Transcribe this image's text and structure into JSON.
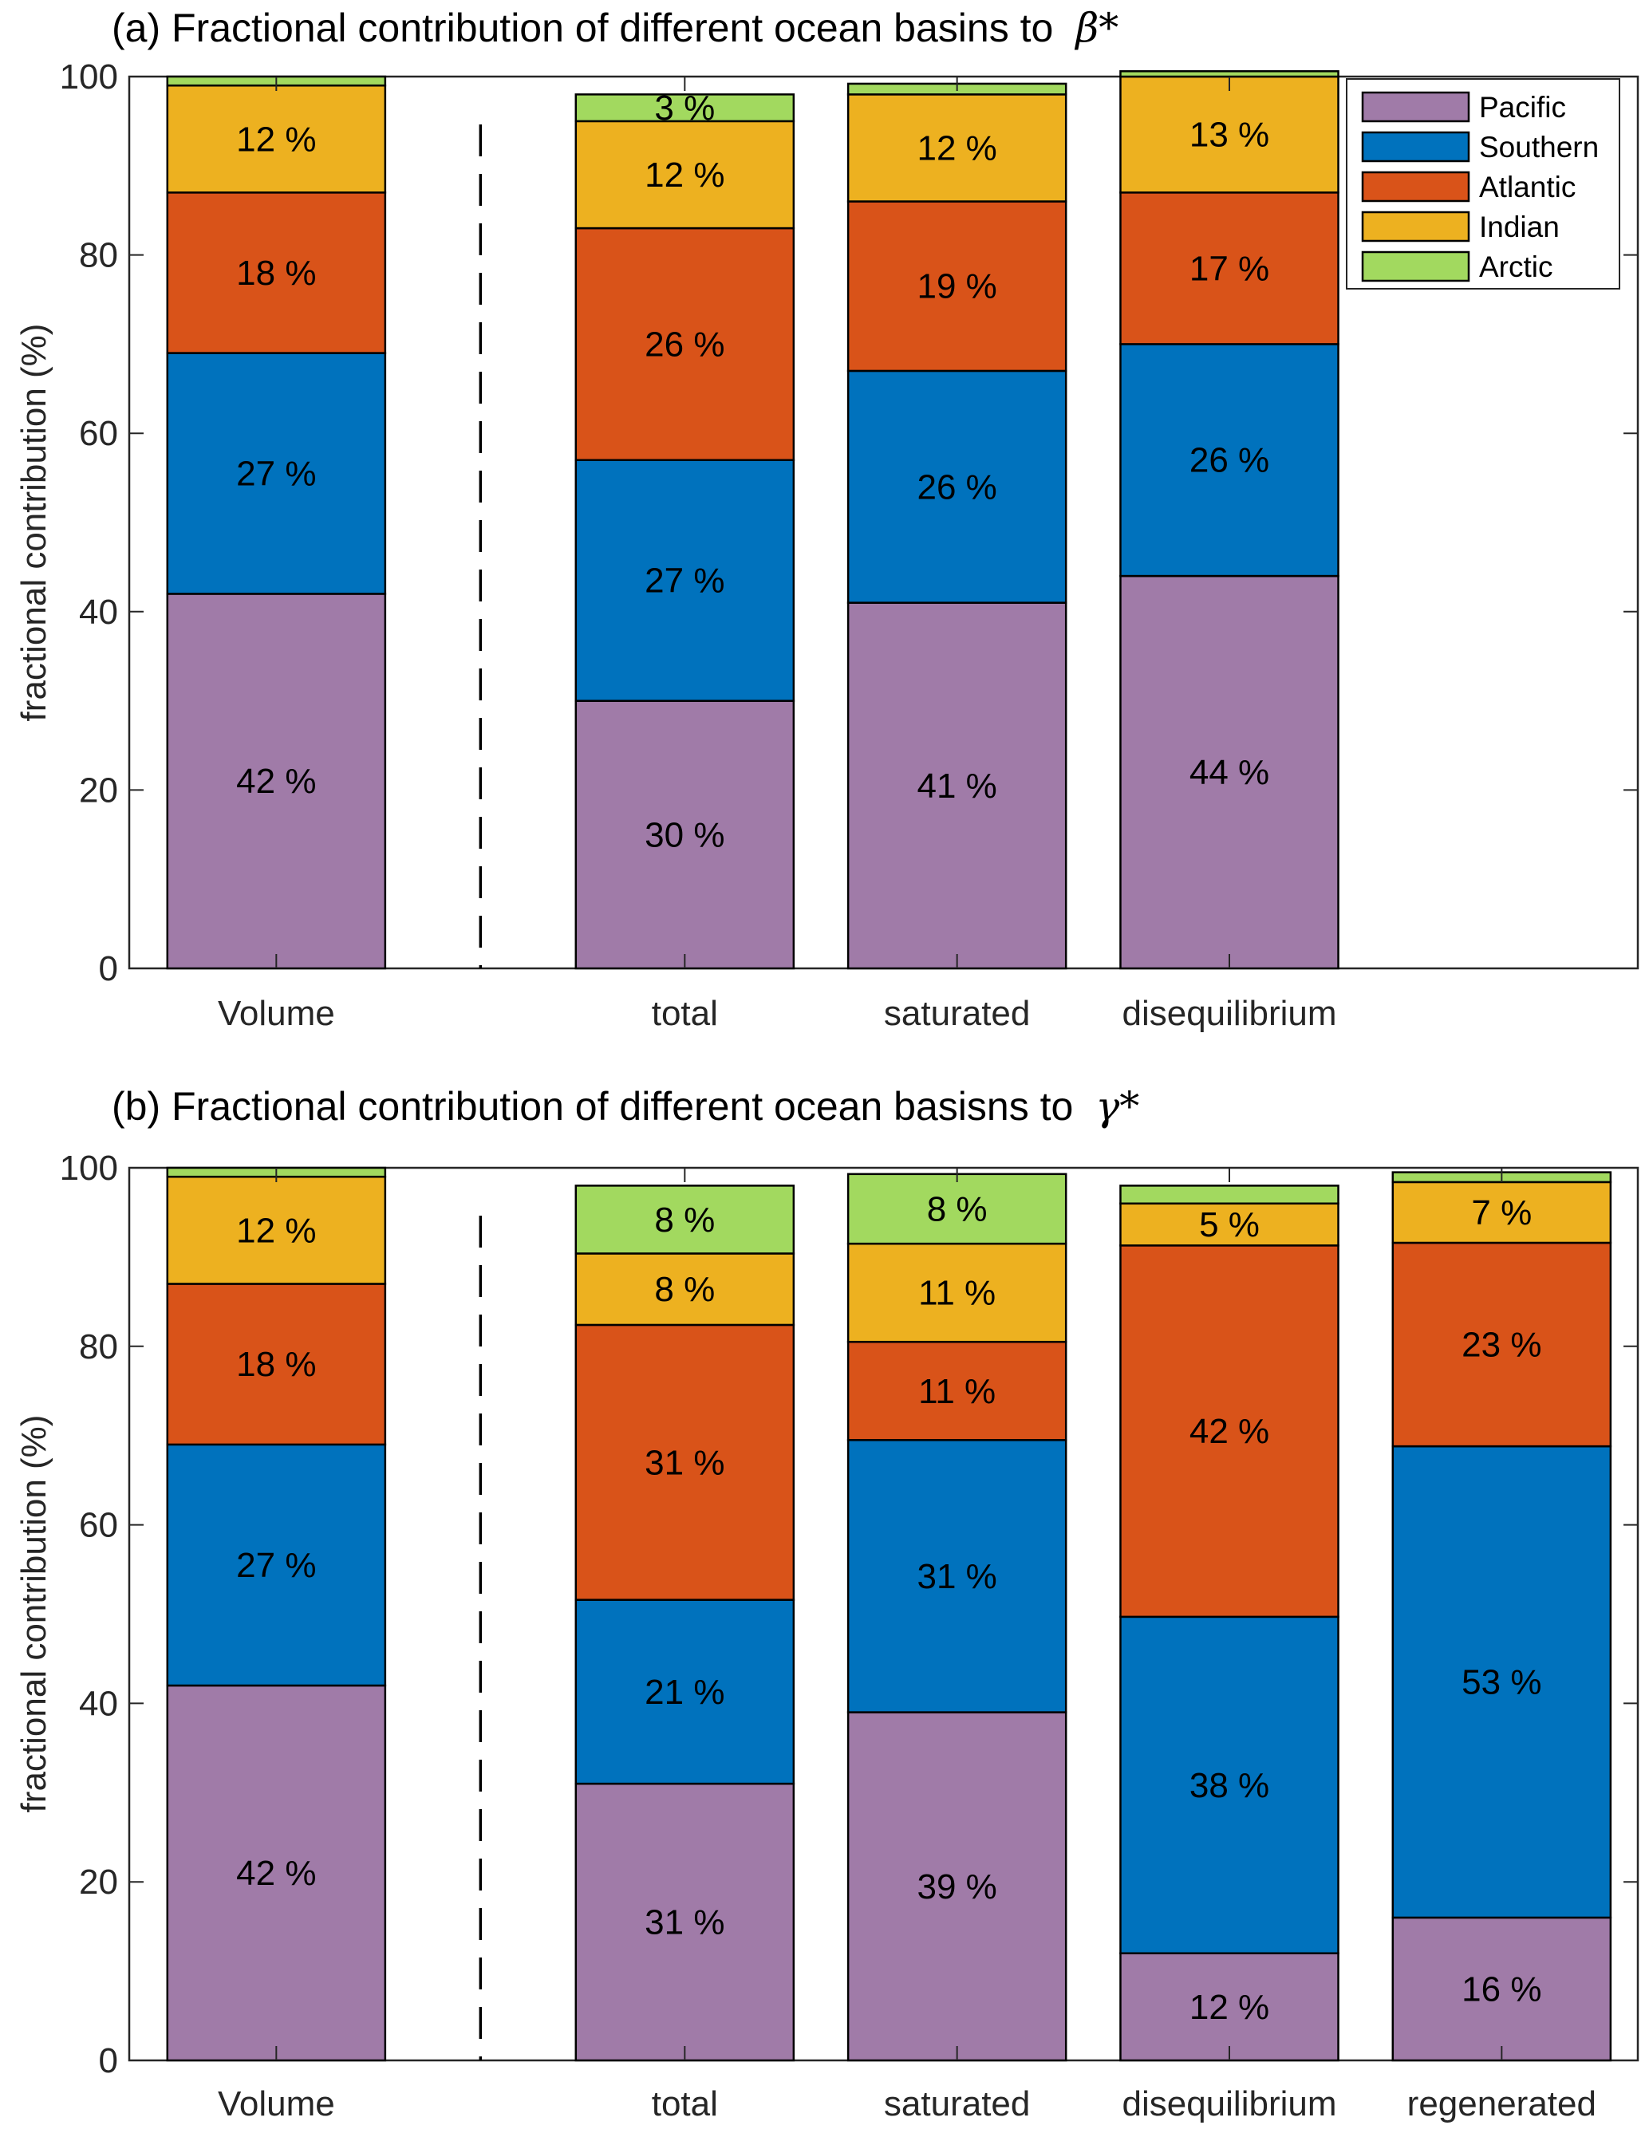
{
  "chart_data": [
    {
      "type": "bar",
      "stacked": true,
      "title": "(a) Fractional contribution of different ocean basins to",
      "title_symbol": "β*",
      "ylabel": "fractional contribution (%)",
      "ylim": [
        0,
        100
      ],
      "yticks": [
        "0",
        "20",
        "40",
        "60",
        "80",
        "100"
      ],
      "categories": [
        "Volume",
        "total",
        "saturated",
        "disequilibrium"
      ],
      "legend": "top-right",
      "series": [
        {
          "name": "Pacific",
          "color": "#A07BA8",
          "values": [
            42,
            30,
            41,
            44
          ],
          "labels": [
            "42 %",
            "30 %",
            "41 %",
            "44 %"
          ]
        },
        {
          "name": "Southern",
          "color": "#0072BD",
          "values": [
            27,
            27,
            26,
            26
          ],
          "labels": [
            "27 %",
            "27 %",
            "26 %",
            "26 %"
          ]
        },
        {
          "name": "Atlantic",
          "color": "#D95319",
          "values": [
            18,
            26,
            19,
            17
          ],
          "labels": [
            "18 %",
            "26 %",
            "19 %",
            "17 %"
          ]
        },
        {
          "name": "Indian",
          "color": "#EDB120",
          "values": [
            12,
            12,
            12,
            13
          ],
          "labels": [
            "12 %",
            "12 %",
            "12 %",
            "13 %"
          ]
        },
        {
          "name": "Arctic",
          "color": "#A2D95F",
          "values": [
            1,
            3,
            1.2,
            0.6
          ],
          "labels": [
            null,
            "3 %",
            null,
            null
          ]
        }
      ]
    },
    {
      "type": "bar",
      "stacked": true,
      "title": "(b) Fractional contribution of different ocean basisns to",
      "title_symbol": "γ*",
      "ylabel": "fractional contribution (%)",
      "ylim": [
        0,
        100
      ],
      "yticks": [
        "0",
        "20",
        "40",
        "60",
        "80",
        "100"
      ],
      "categories": [
        "Volume",
        "total",
        "saturated",
        "disequilibrium",
        "regenerated"
      ],
      "series": [
        {
          "name": "Pacific",
          "color": "#A07BA8",
          "values": [
            42,
            31,
            39,
            12,
            16
          ],
          "labels": [
            "42 %",
            "31 %",
            "39 %",
            "12 %",
            "16 %"
          ]
        },
        {
          "name": "Southern",
          "color": "#0072BD",
          "values": [
            27,
            20.6,
            30.5,
            37.7,
            52.8
          ],
          "labels": [
            "27 %",
            "21 %",
            "31 %",
            "38 %",
            "53 %"
          ]
        },
        {
          "name": "Atlantic",
          "color": "#D95319",
          "values": [
            18,
            30.8,
            11,
            41.6,
            22.8
          ],
          "labels": [
            "18 %",
            "31 %",
            "11 %",
            "42 %",
            "23 %"
          ]
        },
        {
          "name": "Indian",
          "color": "#EDB120",
          "values": [
            12,
            8,
            11,
            4.7,
            6.8
          ],
          "labels": [
            "12 %",
            "8 %",
            "11 %",
            "5 %",
            "7 %"
          ]
        },
        {
          "name": "Arctic",
          "color": "#A2D95F",
          "values": [
            1,
            7.6,
            7.8,
            2,
            1.1
          ],
          "labels": [
            null,
            "8 %",
            "8 %",
            null,
            null
          ]
        }
      ]
    }
  ]
}
